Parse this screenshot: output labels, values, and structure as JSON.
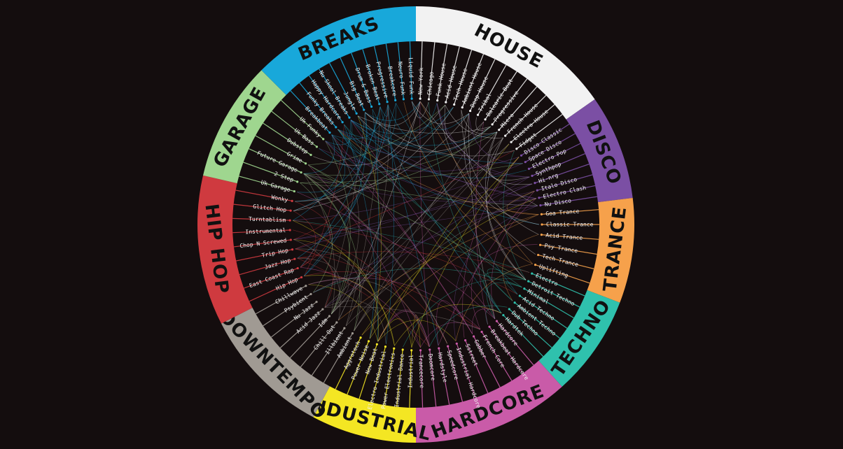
{
  "groups": [
    {
      "name": "HOUSE",
      "color": "#f2f2f2",
      "text_color": "#111111",
      "start": 0.0,
      "end": 55.0,
      "subgenres": [
        "New York",
        "Chicago",
        "Funk House",
        "Acid House",
        "Tech House",
        "Ambient House",
        "Deep House",
        "Tribal",
        "Balearic Beat",
        "Progressive",
        "Micro",
        "French House",
        "Electro House",
        "Fidget"
      ]
    },
    {
      "name": "DISCO",
      "color": "#7b4fa4",
      "text_color": "#111111",
      "start": 55.0,
      "end": 83.0,
      "subgenres": [
        "Disco Classic",
        "Space Disco",
        "Electro Pop",
        "Synthpop",
        "Hi-nrg",
        "Italo Disco",
        "Electro Clash",
        "Nu Disco"
      ]
    },
    {
      "name": "TRANCE",
      "color": "#f6a14b",
      "text_color": "#111111",
      "start": 83.0,
      "end": 111.0,
      "subgenres": [
        "Goa Trance",
        "Classic Trance",
        "Acid Trance",
        "Psy Trance",
        "Tech Trance",
        "Uplifting"
      ]
    },
    {
      "name": "TECHNO",
      "color": "#2fc1ad",
      "text_color": "#111111",
      "start": 111.0,
      "end": 138.0,
      "subgenres": [
        "Electro",
        "Detroit Techno",
        "Minimal",
        "Acid Techno",
        "Ambient Techno",
        "Dub Techno",
        "Hardtek"
      ]
    },
    {
      "name": "HARDCORE",
      "color": "#c95ba8",
      "text_color": "#111111",
      "start": 138.0,
      "end": 180.0,
      "subgenres": [
        "Hardcore",
        "Breakbeat Hardcore",
        "French Core",
        "Gabber",
        "Sstreet",
        "Industrial Hardcore",
        "Speedcore",
        "Hardstyle",
        "Doomcore",
        "Trancecore"
      ]
    },
    {
      "name": "INDUSTRIAL",
      "color": "#f4e623",
      "text_color": "#111111",
      "start": 180.0,
      "end": 208.0,
      "subgenres": [
        "Industrial",
        "Industrial Dance",
        "Power Electronics",
        "Electro Industrial",
        "New Beat",
        "Power Noise",
        "Aggrotech"
      ]
    },
    {
      "name": "DOWNTEMPO",
      "color": "#a09a93",
      "text_color": "#111111",
      "start": 208.0,
      "end": 243.0,
      "subgenres": [
        "Ambient",
        "Illbient",
        "Chill Out",
        "Idm",
        "Acid Jazz",
        "Nu Jazz",
        "Psybient",
        "Chillwave"
      ]
    },
    {
      "name": "HIP HOP",
      "color": "#cf3a3f",
      "text_color": "#111111",
      "start": 243.0,
      "end": 283.0,
      "subgenres": [
        "Hip Hop",
        "East Coast Rap",
        "Jazz Hop",
        "Trip Hop",
        "Chop N Screwed",
        "Instrumental",
        "Turntablism",
        "Glitch Hop",
        "Wonky"
      ]
    },
    {
      "name": "GARAGE",
      "color": "#9fd68f",
      "text_color": "#111111",
      "start": 283.0,
      "end": 315.0,
      "subgenres": [
        "Uk Garage",
        "2 Step",
        "Future Garage",
        "Grime",
        "Dubstep",
        "Uk Bass",
        "Uk Funky"
      ]
    },
    {
      "name": "BREAKS",
      "color": "#18a8da",
      "text_color": "#111111",
      "start": 315.0,
      "end": 360.0,
      "subgenres": [
        "Breakbeat",
        "Funky Breaks",
        "Happy Hardcore",
        "Nu Skool Breaks",
        "Jungle",
        "Big Beat",
        "Drum & Bass",
        "Broken Beat",
        "Progressive",
        "Breakcore",
        "Neuro Funk",
        "Liquid Funk"
      ]
    }
  ]
}
